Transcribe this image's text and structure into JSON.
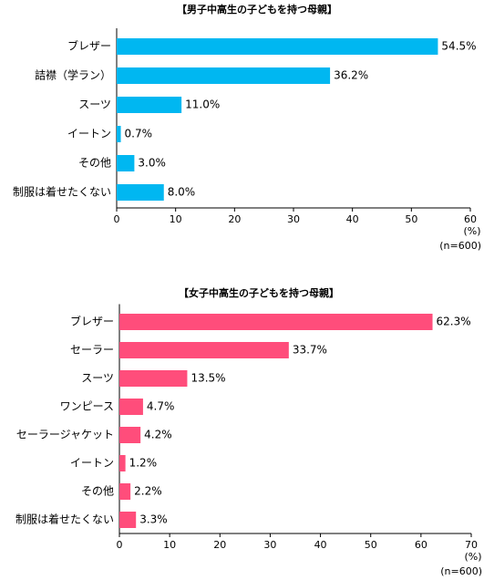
{
  "chart_data": [
    {
      "type": "bar",
      "orientation": "horizontal",
      "title": "【男子中高生の子どもを持つ母親】",
      "categories": [
        "ブレザー",
        "詰襟（学ラン）",
        "スーツ",
        "イートン",
        "その他",
        "制服は着せたくない"
      ],
      "values": [
        54.5,
        36.2,
        11.0,
        0.7,
        3.0,
        8.0
      ],
      "value_labels": [
        "54.5%",
        "36.2%",
        "11.0%",
        "0.7%",
        "3.0%",
        "8.0%"
      ],
      "color": "#00b7f1",
      "xlim": [
        0,
        60
      ],
      "xticks": [
        0,
        10,
        20,
        30,
        40,
        50,
        60
      ],
      "unit": "(%)",
      "note": "(n=600)",
      "grid": false
    },
    {
      "type": "bar",
      "orientation": "horizontal",
      "title": "【女子中高生の子どもを持つ母親】",
      "categories": [
        "ブレザー",
        "セーラー",
        "スーツ",
        "ワンピース",
        "セーラージャケット",
        "イートン",
        "その他",
        "制服は着せたくない"
      ],
      "values": [
        62.3,
        33.7,
        13.5,
        4.7,
        4.2,
        1.2,
        2.2,
        3.3
      ],
      "value_labels": [
        "62.3%",
        "33.7%",
        "13.5%",
        "4.7%",
        "4.2%",
        "1.2%",
        "2.2%",
        "3.3%"
      ],
      "color": "#ff4d7b",
      "xlim": [
        0,
        70
      ],
      "xticks": [
        0,
        10,
        20,
        30,
        40,
        50,
        60,
        70
      ],
      "unit": "(%)",
      "note": "(n=600)",
      "grid": false
    }
  ]
}
